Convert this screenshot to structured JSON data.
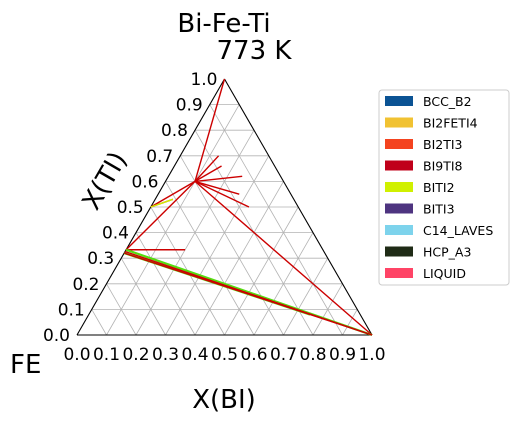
{
  "chart_data": {
    "type": "ternary phase diagram",
    "title": "Bi-Fe-Ti",
    "subtitle": "773  K",
    "corner_label": "FE",
    "xlabel": "X(BI)",
    "ylabel": "X(TI)",
    "x_ticks": [
      "0.0",
      "0.1",
      "0.2",
      "0.3",
      "0.4",
      "0.5",
      "0.6",
      "0.7",
      "0.8",
      "0.9",
      "1.0"
    ],
    "y_ticks": [
      "0.0",
      "0.1",
      "0.2",
      "0.3",
      "0.4",
      "0.5",
      "0.6",
      "0.7",
      "0.8",
      "0.9",
      "1.0"
    ],
    "grid": true,
    "legend_position": "right",
    "legend": [
      {
        "name": "BCC_B2",
        "color": "#0b5394"
      },
      {
        "name": "BI2FETI4",
        "color": "#f1c232"
      },
      {
        "name": "BI2TI3",
        "color": "#f4431f"
      },
      {
        "name": "BI9TI8",
        "color": "#c0001a"
      },
      {
        "name": "BITI2",
        "color": "#d0f000"
      },
      {
        "name": "BITI3",
        "color": "#4e3480"
      },
      {
        "name": "C14_LAVES",
        "color": "#7dd3ec"
      },
      {
        "name": "HCP_A3",
        "color": "#1f2b16"
      },
      {
        "name": "LIQUID",
        "color": "#ff4466"
      }
    ],
    "tie_lines": [
      {
        "color": "#cc0000",
        "from": [
          0.0,
          1.0
        ],
        "to": [
          0.1,
          0.6
        ]
      },
      {
        "color": "#cc0000",
        "from": [
          0.1,
          0.6
        ],
        "to": [
          0.13,
          0.7
        ]
      },
      {
        "color": "#cc0000",
        "from": [
          0.1,
          0.6
        ],
        "to": [
          0.16,
          0.66
        ]
      },
      {
        "color": "#cc0000",
        "from": [
          0.1,
          0.6
        ],
        "to": [
          0.25,
          0.62
        ]
      },
      {
        "color": "#cc0000",
        "from": [
          0.1,
          0.6
        ],
        "to": [
          0.275,
          0.55
        ]
      },
      {
        "color": "#cc0000",
        "from": [
          0.1,
          0.6
        ],
        "to": [
          0.333,
          0.5
        ]
      },
      {
        "color": "#cc0000",
        "from": [
          0.1,
          0.6
        ],
        "to": [
          1.0,
          0.0
        ]
      },
      {
        "color": "#cc0000",
        "from": [
          0.1,
          0.6
        ],
        "to": [
          0.0,
          0.5
        ]
      },
      {
        "color": "#cc0000",
        "from": [
          0.1,
          0.6
        ],
        "to": [
          0.0,
          0.333
        ]
      },
      {
        "color": "#cc0000",
        "from": [
          0.0,
          0.333
        ],
        "to": [
          0.2,
          0.333
        ]
      },
      {
        "color": "#cc0000",
        "from": [
          0.0,
          0.5
        ],
        "to": [
          0.06,
          0.53
        ]
      },
      {
        "color": "#d0f000",
        "from": [
          0.0,
          0.5
        ],
        "to": [
          0.06,
          0.53
        ]
      },
      {
        "color": "#55dd11",
        "from": [
          0.0,
          0.333
        ],
        "to": [
          1.0,
          0.0
        ]
      },
      {
        "color": "#55dd11",
        "from": [
          0.0,
          0.32
        ],
        "to": [
          0.75,
          0.08
        ]
      },
      {
        "color": "#cc0000",
        "from": [
          0.0,
          0.326
        ],
        "to": [
          1.0,
          0.0
        ]
      },
      {
        "color": "#cc0000",
        "from": [
          0.0,
          0.32
        ],
        "to": [
          1.0,
          0.0
        ]
      }
    ]
  }
}
